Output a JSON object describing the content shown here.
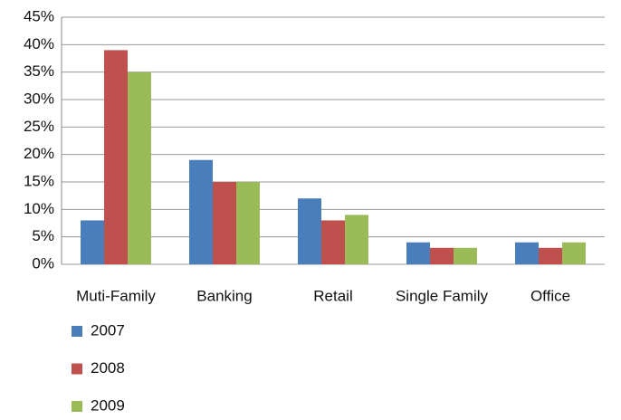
{
  "chart_data": {
    "type": "bar",
    "categories": [
      "Muti-Family",
      "Banking",
      "Retail",
      "Single Family",
      "Office"
    ],
    "series": [
      {
        "name": "2007",
        "color": "#4a7ebb",
        "values": [
          8,
          19,
          12,
          4,
          4
        ]
      },
      {
        "name": "2008",
        "color": "#c0504d",
        "values": [
          39,
          15,
          8,
          3,
          3
        ]
      },
      {
        "name": "2009",
        "color": "#9bbb59",
        "values": [
          35,
          15,
          9,
          3,
          4
        ]
      }
    ],
    "ylim": [
      0,
      45
    ],
    "yticks": [
      {
        "value": 0,
        "label": "0%"
      },
      {
        "value": 5,
        "label": "5%"
      },
      {
        "value": 10,
        "label": "10%"
      },
      {
        "value": 15,
        "label": "15%"
      },
      {
        "value": 20,
        "label": "20%"
      },
      {
        "value": 25,
        "label": "25%"
      },
      {
        "value": 30,
        "label": "30%"
      },
      {
        "value": 35,
        "label": "35%"
      },
      {
        "value": 40,
        "label": "40%"
      },
      {
        "value": 45,
        "label": "45%"
      }
    ],
    "grid": true,
    "legend": "bottom-left"
  }
}
